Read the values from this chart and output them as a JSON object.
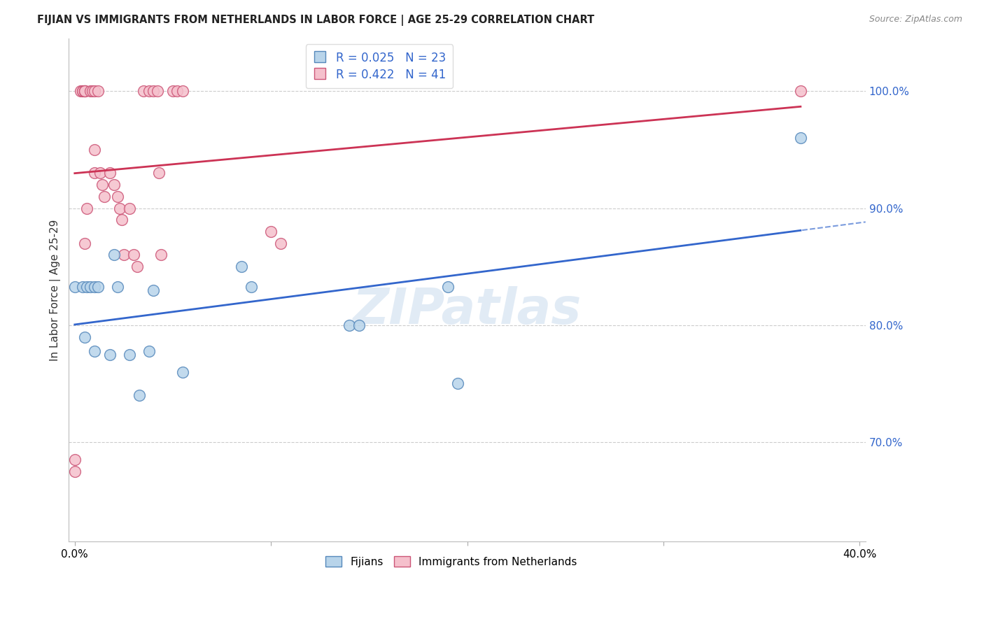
{
  "title": "FIJIAN VS IMMIGRANTS FROM NETHERLANDS IN LABOR FORCE | AGE 25-29 CORRELATION CHART",
  "source": "Source: ZipAtlas.com",
  "ylabel": "In Labor Force | Age 25-29",
  "xlim": [
    -0.003,
    0.403
  ],
  "ylim": [
    0.615,
    1.045
  ],
  "ytick_positions": [
    1.0,
    0.9,
    0.8,
    0.7
  ],
  "ytick_labels": [
    "100.0%",
    "90.0%",
    "80.0%",
    "70.0%"
  ],
  "xtick_positions": [
    0.0,
    0.1,
    0.2,
    0.3,
    0.4
  ],
  "xtick_labels": [
    "0.0%",
    "",
    "",
    "",
    "40.0%"
  ],
  "fijian_fill": "#b8d4ea",
  "fijian_edge": "#5588bb",
  "neth_fill": "#f5c0cc",
  "neth_edge": "#cc5577",
  "blue_line": "#3366cc",
  "pink_line": "#cc3355",
  "fijian_R": 0.025,
  "fijian_N": 23,
  "neth_R": 0.422,
  "neth_N": 41,
  "fijian_x": [
    0.0,
    0.004,
    0.005,
    0.006,
    0.008,
    0.01,
    0.01,
    0.012,
    0.018,
    0.02,
    0.022,
    0.028,
    0.033,
    0.038,
    0.04,
    0.055,
    0.085,
    0.09,
    0.14,
    0.145,
    0.19,
    0.195,
    0.37
  ],
  "fijian_y": [
    0.833,
    0.833,
    0.79,
    0.833,
    0.833,
    0.833,
    0.778,
    0.833,
    0.775,
    0.86,
    0.833,
    0.775,
    0.74,
    0.778,
    0.83,
    0.76,
    0.85,
    0.833,
    0.8,
    0.8,
    0.833,
    0.75,
    0.96
  ],
  "neth_x": [
    0.0,
    0.0,
    0.003,
    0.004,
    0.004,
    0.005,
    0.005,
    0.005,
    0.005,
    0.005,
    0.006,
    0.008,
    0.009,
    0.01,
    0.01,
    0.01,
    0.012,
    0.013,
    0.014,
    0.015,
    0.018,
    0.02,
    0.022,
    0.023,
    0.024,
    0.025,
    0.028,
    0.03,
    0.032,
    0.035,
    0.038,
    0.04,
    0.042,
    0.043,
    0.044,
    0.05,
    0.052,
    0.055,
    0.1,
    0.105,
    0.37
  ],
  "neth_y": [
    0.685,
    0.675,
    1.0,
    1.0,
    1.0,
    1.0,
    1.0,
    1.0,
    1.0,
    0.87,
    0.9,
    1.0,
    1.0,
    1.0,
    0.95,
    0.93,
    1.0,
    0.93,
    0.92,
    0.91,
    0.93,
    0.92,
    0.91,
    0.9,
    0.89,
    0.86,
    0.9,
    0.86,
    0.85,
    1.0,
    1.0,
    1.0,
    1.0,
    0.93,
    0.86,
    1.0,
    1.0,
    1.0,
    0.88,
    0.87,
    1.0
  ],
  "watermark": "ZIPatlas",
  "grid_color": "#cccccc",
  "marker_size": 130
}
